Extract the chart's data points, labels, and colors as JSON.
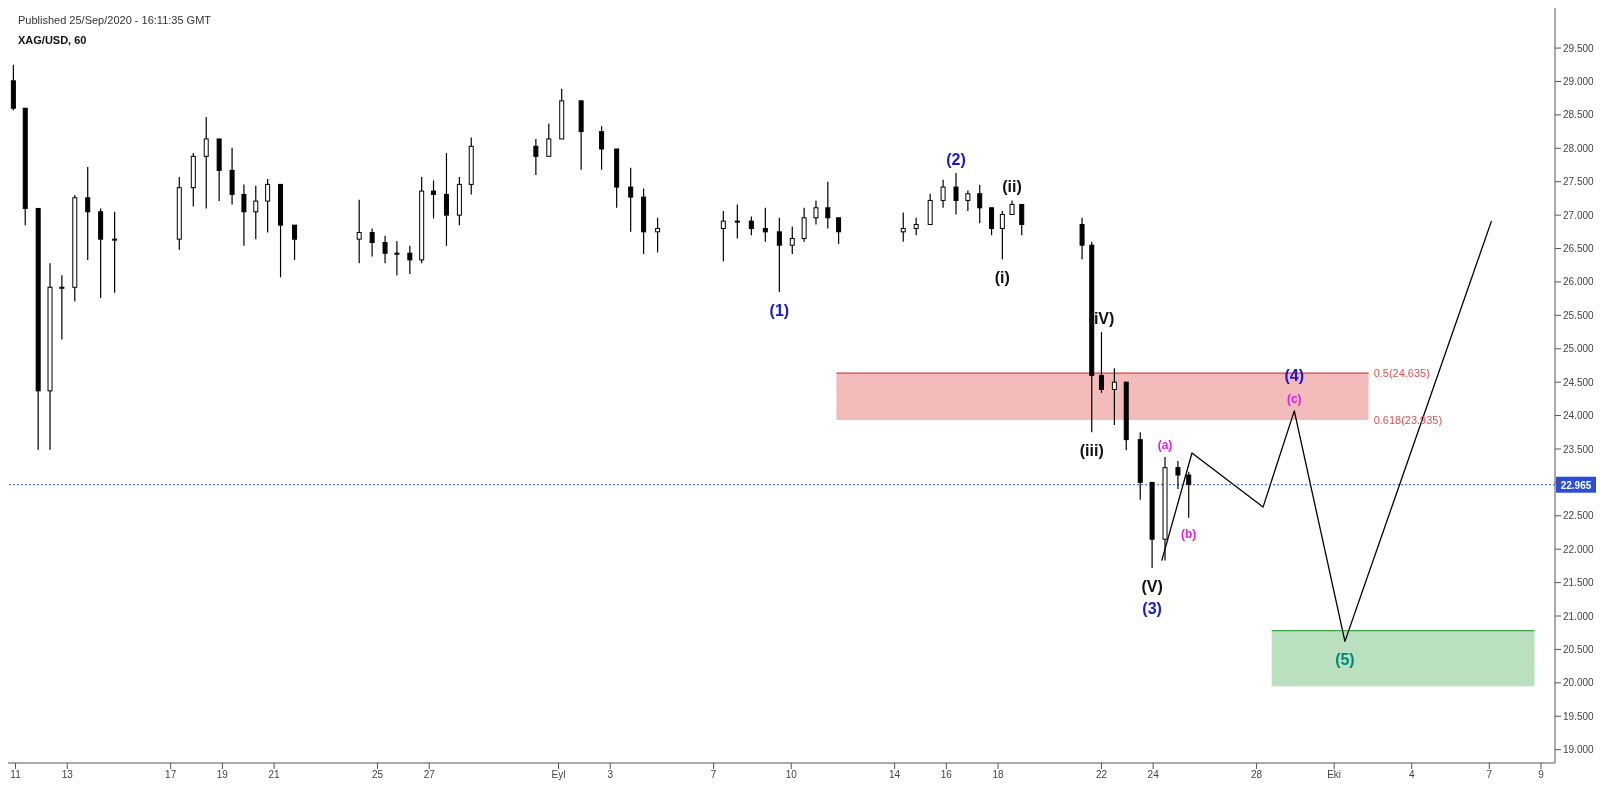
{
  "chart_data": {
    "type": "candlestick",
    "title": "XAG/USD, 60",
    "annotations": [
      "Published 25/Sep/2020 - 16:11:35 GMT",
      {
        "text": "(1)",
        "x": "2020-09-09T13:00",
        "y": 25.85
      },
      {
        "text": "(2)",
        "x": "2020-09-16T09:00",
        "y": 27.63
      },
      {
        "text": "(i)",
        "x": "2020-09-18T04:00",
        "y": 26.34
      },
      {
        "text": "(ii)",
        "x": "2020-09-18T13:00",
        "y": 27.22
      },
      {
        "text": "(iii)",
        "x": "2020-09-21T15:00",
        "y": 23.75
      },
      {
        "text": "(iV)",
        "x": "2020-09-22T00:00",
        "y": 25.25
      },
      {
        "text": "(V)",
        "x": "2020-09-23T23:00",
        "y": 21.72
      },
      {
        "text": "(3)",
        "x": "2020-09-23T23:00",
        "y": 21.72
      },
      {
        "text": "(a)",
        "x": "2020-09-24T11:00",
        "y": 23.38
      },
      {
        "text": "(b)",
        "x": "2020-09-25T09:00",
        "y": 22.47
      },
      {
        "text": "(c)",
        "x": "2020-09-29T11:00",
        "y": 24.07
      },
      {
        "text": "(4)",
        "x": "2020-09-29T11:00",
        "y": 24.07
      },
      {
        "text": "(5)",
        "x": "2020-10-01T10:00",
        "y": 20.62
      },
      {
        "text": "0.5(24.635)",
        "x": "2020-10-02T08:00",
        "y": 24.635
      },
      {
        "text": "0.618(23.935)",
        "x": "2020-10-02T08:00",
        "y": 23.935
      }
    ],
    "x": [
      "2020-08-10T22:00",
      "2020-08-11T09:00",
      "2020-08-11T21:00",
      "2020-08-12T08:00",
      "2020-08-12T19:00",
      "2020-08-13T07:00",
      "2020-08-13T19:00",
      "2020-08-14T07:00",
      "2020-08-14T20:00",
      "2020-08-17T08:00",
      "2020-08-17T21:00",
      "2020-08-18T09:00",
      "2020-08-18T21:00",
      "2020-08-19T09:00",
      "2020-08-19T20:00",
      "2020-08-20T07:00",
      "2020-08-20T18:00",
      "2020-08-21T06:00",
      "2020-08-21T19:00",
      "2020-08-24T07:00",
      "2020-08-24T19:00",
      "2020-08-25T07:00",
      "2020-08-25T18:00",
      "2020-08-26T06:00",
      "2020-08-26T17:00",
      "2020-08-27T04:00",
      "2020-08-27T16:00",
      "2020-08-28T04:00",
      "2020-08-28T15:00",
      "2020-08-31T03:00",
      "2020-08-31T15:00",
      "2020-09-01T03:00",
      "2020-09-01T21:00",
      "2020-09-02T16:00",
      "2020-09-03T06:00",
      "2020-09-03T19:00",
      "2020-09-04T07:00",
      "2020-09-04T20:00",
      "2020-09-07T09:00",
      "2020-09-07T22:00",
      "2020-09-08T11:00",
      "2020-09-09T00:00",
      "2020-09-09T13:00",
      "2020-09-10T01:00",
      "2020-09-10T12:00",
      "2020-09-10T23:00",
      "2020-09-11T10:00",
      "2020-09-11T20:00",
      "2020-09-14T08:00",
      "2020-09-14T20:00",
      "2020-09-15T09:00",
      "2020-09-15T21:00",
      "2020-09-16T09:00",
      "2020-09-16T20:00",
      "2020-09-17T07:00",
      "2020-09-17T18:00",
      "2020-09-18T04:00",
      "2020-09-18T13:00",
      "2020-09-18T22:00",
      "2020-09-21T06:00",
      "2020-09-21T15:00",
      "2020-09-22T00:00",
      "2020-09-22T12:00",
      "2020-09-22T23:00",
      "2020-09-23T12:00",
      "2020-09-23T23:00",
      "2020-09-24T11:00",
      "2020-09-24T23:00",
      "2020-09-25T09:00"
    ],
    "ohlc": [
      [
        29.01,
        29.25,
        28.57,
        28.6
      ],
      [
        28.6,
        28.6,
        26.85,
        27.1
      ],
      [
        27.1,
        27.1,
        23.49,
        24.37
      ],
      [
        24.37,
        26.28,
        23.49,
        25.92
      ],
      [
        25.92,
        26.1,
        25.14,
        25.92
      ],
      [
        25.92,
        27.3,
        25.71,
        27.26
      ],
      [
        27.26,
        27.72,
        26.33,
        27.05
      ],
      [
        27.05,
        27.1,
        25.76,
        26.64
      ],
      [
        26.64,
        27.05,
        25.84,
        26.64
      ],
      [
        26.64,
        27.57,
        26.48,
        27.41
      ],
      [
        27.41,
        27.93,
        27.13,
        27.88
      ],
      [
        27.88,
        28.47,
        27.1,
        28.14
      ],
      [
        28.14,
        28.14,
        27.21,
        27.67
      ],
      [
        27.67,
        28.01,
        27.16,
        27.31
      ],
      [
        27.31,
        27.46,
        26.54,
        27.05
      ],
      [
        27.05,
        27.44,
        26.64,
        27.21
      ],
      [
        27.21,
        27.54,
        26.74,
        27.46
      ],
      [
        27.46,
        27.46,
        26.07,
        26.85
      ],
      [
        26.85,
        26.85,
        26.33,
        26.64
      ],
      [
        26.64,
        27.23,
        26.28,
        26.74
      ],
      [
        26.74,
        26.8,
        26.38,
        26.59
      ],
      [
        26.59,
        26.69,
        26.28,
        26.43
      ],
      [
        26.43,
        26.61,
        26.1,
        26.43
      ],
      [
        26.43,
        26.54,
        26.12,
        26.33
      ],
      [
        26.33,
        27.57,
        26.28,
        27.36
      ],
      [
        27.36,
        27.52,
        26.95,
        27.31
      ],
      [
        27.31,
        27.93,
        26.54,
        27.0
      ],
      [
        27.0,
        27.57,
        26.85,
        27.46
      ],
      [
        27.46,
        28.16,
        27.31,
        28.03
      ],
      [
        28.03,
        28.14,
        27.6,
        27.88
      ],
      [
        27.88,
        28.37,
        27.88,
        28.14
      ],
      [
        28.14,
        28.89,
        28.14,
        28.71
      ],
      [
        28.71,
        28.71,
        27.68,
        28.25
      ],
      [
        28.25,
        28.33,
        27.68,
        27.99
      ],
      [
        27.99,
        27.99,
        27.11,
        27.42
      ],
      [
        27.42,
        27.71,
        26.75,
        27.27
      ],
      [
        27.27,
        27.4,
        26.42,
        26.75
      ],
      [
        26.75,
        26.96,
        26.44,
        26.8
      ],
      [
        26.8,
        27.06,
        26.31,
        26.91
      ],
      [
        26.91,
        27.16,
        26.65,
        26.91
      ],
      [
        26.91,
        26.98,
        26.7,
        26.8
      ],
      [
        26.8,
        27.11,
        26.6,
        26.75
      ],
      [
        26.75,
        26.96,
        25.85,
        26.55
      ],
      [
        26.55,
        26.83,
        26.42,
        26.65
      ],
      [
        26.65,
        27.11,
        26.6,
        26.96
      ],
      [
        26.96,
        27.22,
        26.86,
        27.11
      ],
      [
        27.11,
        27.5,
        26.8,
        26.96
      ],
      [
        26.96,
        26.96,
        26.57,
        26.75
      ],
      [
        26.75,
        27.04,
        26.6,
        26.8
      ],
      [
        26.8,
        26.96,
        26.7,
        26.86
      ],
      [
        26.86,
        27.32,
        26.86,
        27.22
      ],
      [
        27.22,
        27.53,
        27.11,
        27.42
      ],
      [
        27.42,
        27.63,
        27.01,
        27.22
      ],
      [
        27.22,
        27.37,
        27.06,
        27.32
      ],
      [
        27.32,
        27.45,
        26.88,
        27.11
      ],
      [
        27.11,
        27.11,
        26.7,
        26.8
      ],
      [
        26.8,
        27.06,
        26.34,
        27.01
      ],
      [
        27.01,
        27.22,
        27.01,
        27.16
      ],
      [
        27.16,
        27.16,
        26.7,
        26.86
      ],
      [
        26.86,
        26.96,
        26.34,
        26.55
      ],
      [
        26.55,
        26.6,
        23.75,
        24.6
      ],
      [
        24.6,
        25.25,
        24.34,
        24.39
      ],
      [
        24.39,
        24.71,
        23.86,
        24.5
      ],
      [
        24.5,
        24.5,
        23.48,
        23.64
      ],
      [
        23.64,
        23.75,
        22.74,
        23.0
      ],
      [
        23.0,
        23.0,
        21.72,
        22.15
      ],
      [
        22.15,
        23.38,
        21.83,
        23.22
      ],
      [
        23.22,
        23.32,
        22.9,
        23.11
      ],
      [
        23.11,
        23.16,
        22.47,
        22.97
      ]
    ],
    "color": "#000000",
    "series": [
      {
        "type": "line",
        "x": [
          "2020-09-11T18:00",
          "2020-10-02T08:00"
        ],
        "values": [
          24.635,
          24.635
        ],
        "lower": [
          23.935,
          23.935
        ],
        "upper": [
          24.635,
          24.635
        ],
        "color": "#e03c3c"
      },
      {
        "type": "line",
        "x": [
          "2020-09-28T14:00",
          "2020-10-08T18:00"
        ],
        "values": [
          20.78,
          20.78
        ],
        "lower": [
          19.95,
          19.95
        ],
        "upper": [
          20.78,
          20.78
        ],
        "color": "#3aa64a"
      },
      {
        "type": "line",
        "x": [
          "2020-09-24T08:00",
          "2020-09-25T12:00",
          "2020-09-28T06:00",
          "2020-09-29T11:00",
          "2020-10-01T10:00",
          "2020-10-07T02:00"
        ],
        "values": [
          21.83,
          23.44,
          22.63,
          24.07,
          20.62,
          26.91
        ],
        "color": "#000000"
      }
    ],
    "ref_lines": [
      {
        "axis": "y",
        "value": 22.965,
        "label": "22.965",
        "color": "#2a4fd6",
        "line_style": "dotted"
      }
    ],
    "xlim": [
      "2020-08-10T17:00",
      "2020-10-09T13:00"
    ],
    "xticks": [
      {
        "value": "2020-08-11",
        "label": "11"
      },
      {
        "value": "2020-08-13",
        "label": "13"
      },
      {
        "value": "2020-08-17",
        "label": "17"
      },
      {
        "value": "2020-08-19",
        "label": "19"
      },
      {
        "value": "2020-08-21",
        "label": "21"
      },
      {
        "value": "2020-08-25",
        "label": "25"
      },
      {
        "value": "2020-08-27",
        "label": "27"
      },
      {
        "value": "2020-09-01",
        "label": "Eyl"
      },
      {
        "value": "2020-09-03",
        "label": "3"
      },
      {
        "value": "2020-09-07",
        "label": "7"
      },
      {
        "value": "2020-09-10",
        "label": "10"
      },
      {
        "value": "2020-09-14",
        "label": "14"
      },
      {
        "value": "2020-09-16",
        "label": "16"
      },
      {
        "value": "2020-09-18",
        "label": "18"
      },
      {
        "value": "2020-09-22",
        "label": "22"
      },
      {
        "value": "2020-09-24",
        "label": "24"
      },
      {
        "value": "2020-09-28",
        "label": "28"
      },
      {
        "value": "2020-10-01",
        "label": "Eki"
      },
      {
        "value": "2020-10-04",
        "label": "4"
      },
      {
        "value": "2020-10-07",
        "label": "7"
      },
      {
        "value": "2020-10-09",
        "label": "9"
      }
    ],
    "ylim": [
      18.8,
      30.1
    ],
    "yticks": [
      {
        "value": 19,
        "label": "19.000"
      },
      {
        "value": 19.5,
        "label": "19.500"
      },
      {
        "value": 20,
        "label": "20.000"
      },
      {
        "value": 20.5,
        "label": "20.500"
      },
      {
        "value": 21,
        "label": "21.000"
      },
      {
        "value": 21.5,
        "label": "21.500"
      },
      {
        "value": 22,
        "label": "22.000"
      },
      {
        "value": 22.5,
        "label": "22.500"
      },
      {
        "value": 23,
        "label": null
      },
      {
        "value": 23.5,
        "label": "23.500"
      },
      {
        "value": 24,
        "label": "24.000"
      },
      {
        "value": 24.5,
        "label": "24.500"
      },
      {
        "value": 25,
        "label": "25.000"
      },
      {
        "value": 25.5,
        "label": "25.500"
      },
      {
        "value": 26,
        "label": "26.000"
      },
      {
        "value": 26.5,
        "label": "26.500"
      },
      {
        "value": 27,
        "label": "27.000"
      },
      {
        "value": 27.5,
        "label": "27.500"
      },
      {
        "value": 28,
        "label": "28.000"
      },
      {
        "value": 28.5,
        "label": "28.500"
      },
      {
        "value": 29,
        "label": "29.000"
      },
      {
        "value": 29.5,
        "label": "29.500"
      }
    ]
  }
}
